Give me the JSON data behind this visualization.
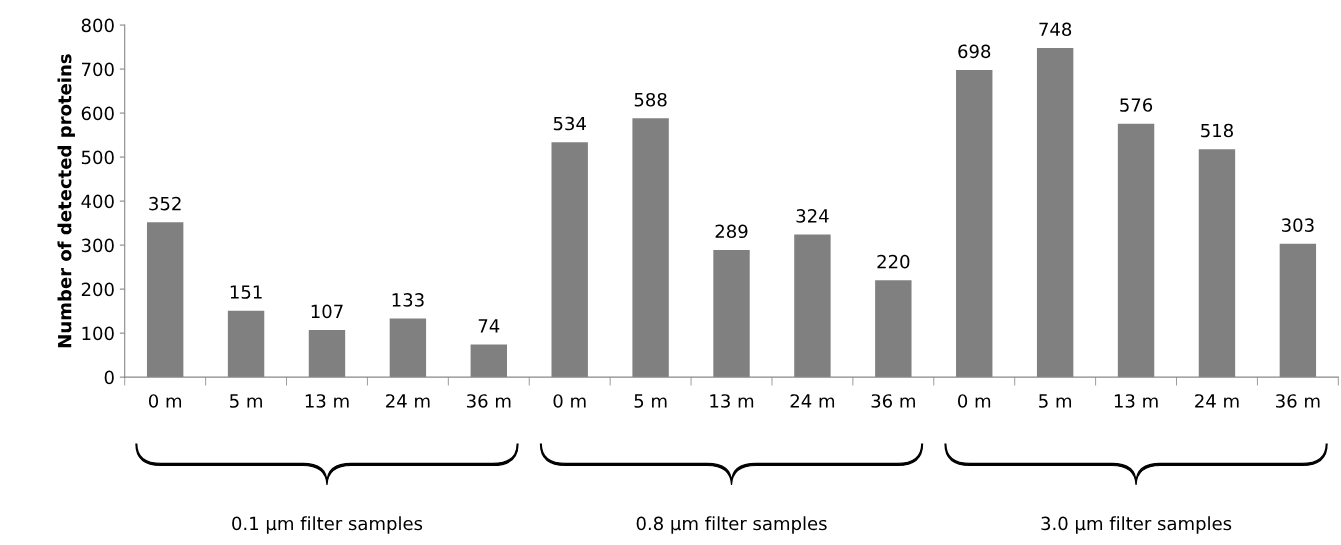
{
  "chart_data": {
    "type": "bar",
    "ylabel": "Number of detected proteins",
    "categories": [
      "0 m",
      "5 m",
      "13 m",
      "24 m",
      "36 m",
      "0 m",
      "5 m",
      "13 m",
      "24 m",
      "36 m",
      "0 m",
      "5 m",
      "13 m",
      "24 m",
      "36 m"
    ],
    "values": [
      352,
      151,
      107,
      133,
      74,
      534,
      588,
      289,
      324,
      220,
      698,
      748,
      576,
      518,
      303
    ],
    "color": "#808080",
    "ylim": [
      0,
      800
    ],
    "yticks": [
      0,
      100,
      200,
      300,
      400,
      500,
      600,
      700,
      800
    ],
    "grid": false,
    "data_labels": true,
    "annotations": [
      "0.1 μm filter samples",
      "0.8 μm filter samples",
      "3.0 μm filter samples"
    ]
  }
}
